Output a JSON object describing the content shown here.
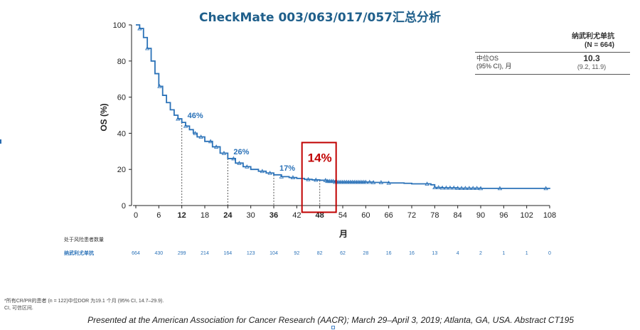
{
  "title": "CheckMate 003/063/017/057汇总分析",
  "chart_data": {
    "type": "line",
    "xlabel": "月",
    "ylabel": "OS (%)",
    "xlim": [
      0,
      108
    ],
    "ylim": [
      0,
      100
    ],
    "xticks": [
      0,
      6,
      12,
      18,
      24,
      30,
      36,
      42,
      48,
      54,
      60,
      66,
      72,
      78,
      84,
      90,
      96,
      102,
      108
    ],
    "yticks": [
      0,
      20,
      40,
      60,
      80,
      100
    ],
    "bold_xticks": [
      12,
      24,
      36,
      48
    ],
    "line_color": "#2b72b8",
    "highlight_color": "#c00000",
    "series": [
      {
        "x": [
          0,
          1,
          2,
          3,
          4,
          5,
          6,
          7,
          8,
          9,
          10,
          11,
          12,
          13,
          14,
          15,
          16,
          18,
          20,
          22,
          24,
          26,
          28,
          30,
          32,
          34,
          36,
          38,
          40,
          42,
          44,
          46,
          48,
          50,
          52,
          54,
          56,
          58,
          60,
          62,
          66,
          70,
          72,
          75,
          77,
          78,
          80,
          84,
          90,
          96,
          102,
          108
        ],
        "y": [
          100,
          98,
          93,
          87,
          80,
          73,
          66,
          61,
          57,
          53,
          50,
          48,
          46,
          44,
          42,
          40,
          38,
          35.5,
          32.5,
          29,
          26,
          23.5,
          21.5,
          20,
          19,
          18,
          17,
          16,
          15.5,
          15,
          14.5,
          14.2,
          14,
          13.5,
          13,
          13,
          13,
          13,
          13,
          12.8,
          12.5,
          12.3,
          12,
          12,
          11.5,
          10,
          9.8,
          9.6,
          9.5,
          9.5,
          9.5,
          9.2
        ]
      }
    ],
    "censor_x": [
      1,
      3,
      6.2,
      11,
      13,
      15.5,
      17,
      19.5,
      21,
      23,
      25.5,
      27,
      29,
      33,
      35,
      38,
      41,
      45,
      47,
      49.5,
      50,
      50.5,
      51,
      51.5,
      52,
      52.5,
      53,
      53.5,
      54,
      54.5,
      55,
      55.5,
      56,
      56.5,
      57,
      57.5,
      58,
      58.5,
      59,
      59.5,
      60,
      61,
      62,
      64,
      66,
      76,
      78,
      79,
      80,
      81,
      82,
      83,
      84,
      85,
      86,
      87,
      88,
      89,
      90,
      95,
      107
    ],
    "annotations": [
      {
        "x": 12,
        "y": 46,
        "label": "46%"
      },
      {
        "x": 24,
        "y": 26,
        "label": "26%"
      },
      {
        "x": 36,
        "y": 17,
        "label": "17%"
      },
      {
        "x": 48,
        "y": 14,
        "label": "14%",
        "highlight": true
      }
    ],
    "legend_table": {
      "header": [
        "纳武利尤单抗",
        "(N = 664)"
      ],
      "row_label": [
        "中位OS",
        "(95% CI), 月"
      ],
      "median": "10.3",
      "ci": "(9.2, 11.9)"
    },
    "risk_table": {
      "title": "处于风险患者数量",
      "arm": "纳武利尤单抗",
      "counts": [
        "664",
        "430",
        "299",
        "214",
        "164",
        "123",
        "104",
        "92",
        "82",
        "62",
        "28",
        "16",
        "16",
        "13",
        "4",
        "2",
        "1",
        "1",
        "0"
      ]
    }
  },
  "footnote": {
    "line1": "*所有CR/PR的患者 (n = 122)中位DOR 为19.1 个月 (95% CI, 14.7–29.9).",
    "line2": "CI, 可信区间."
  },
  "citation": "Presented at the American Association for Cancer Research (AACR); March 29–April 3, 2019; Atlanta, GA, USA. Abstract CT195"
}
